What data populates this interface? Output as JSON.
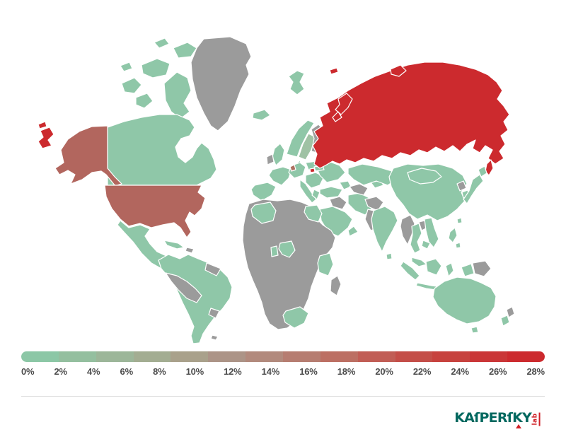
{
  "colors": {
    "ocean": "#ffffff",
    "accent_red": "#cc2a2e",
    "logo_green": "#00685f",
    "logo_red": "#cf2026",
    "tick_text": "#4d4d4d",
    "divider": "#dcdcdc"
  },
  "map_colors": {
    "green_low": "#8fc7a8",
    "green_mid": "#9fc2a4",
    "no_data_gray": "#9b9b9b",
    "red_high": "#cc2a2e",
    "brown_usa": "#b2665e",
    "brown_netherlands": "#ad7060"
  },
  "legend": {
    "ticks": [
      "0%",
      "2%",
      "4%",
      "6%",
      "8%",
      "10%",
      "12%",
      "14%",
      "16%",
      "18%",
      "20%",
      "22%",
      "24%",
      "26%",
      "28%"
    ],
    "colors": [
      "#8cc7a6",
      "#94bf9f",
      "#9cb699",
      "#a3ad92",
      "#a9a18b",
      "#ac9487",
      "#b28a7d",
      "#b67d71",
      "#bc6f63",
      "#c15d55",
      "#c44e48",
      "#c7423e",
      "#ca3637",
      "#cc2a2e"
    ]
  },
  "logo": {
    "brand": "KAſPERſKY",
    "lab": "lab"
  },
  "chart_data": {
    "type": "heatmap",
    "subtype": "world-choropleth",
    "title": "",
    "legend_ticks": [
      "0%",
      "2%",
      "4%",
      "6%",
      "8%",
      "10%",
      "12%",
      "14%",
      "16%",
      "18%",
      "20%",
      "22%",
      "24%",
      "26%",
      "28%"
    ],
    "scale": {
      "min_pct": 0,
      "max_pct": 28,
      "low_color": "#8cc7a6",
      "high_color": "#cc2a2e",
      "no_data_color": "#9b9b9b"
    },
    "regions": [
      {
        "name": "Russia (incl. Kaliningrad, Novaya Zemlya, arctic islands)",
        "color": "#cc2a2e",
        "approx_bin": "26-28%"
      },
      {
        "name": "United States (incl. Alaska)",
        "color": "#b2665e",
        "approx_bin": "14-16%"
      },
      {
        "name": "Netherlands",
        "color": "#ad7060",
        "approx_bin": "8-12%"
      },
      {
        "name": "Sweden",
        "color": "#9fc2a4",
        "approx_bin": "2-4%"
      },
      {
        "name": "Canada",
        "color": "#8fc7a8",
        "approx_bin": "0-2%"
      },
      {
        "name": "Mexico / Central America",
        "color": "#8fc7a8",
        "approx_bin": "0-2%"
      },
      {
        "name": "Cuba",
        "color": "#8fc7a8",
        "approx_bin": "0-2%"
      },
      {
        "name": "South America (Brazil, Argentina, Chile, Colombia, Venezuela, Ecuador)",
        "color": "#8fc7a8",
        "approx_bin": "0-2%"
      },
      {
        "name": "United Kingdom",
        "color": "#8fc7a8",
        "approx_bin": "0-2%"
      },
      {
        "name": "Iceland",
        "color": "#8fc7a8",
        "approx_bin": "0-2%"
      },
      {
        "name": "Norway",
        "color": "#8fc7a8",
        "approx_bin": "0-2%"
      },
      {
        "name": "France / Iberia / Germany / Italy / Poland / Balkans / Ukraine",
        "color": "#8fc7a8",
        "approx_bin": "0-2%"
      },
      {
        "name": "Turkey",
        "color": "#8fc7a8",
        "approx_bin": "0-2%"
      },
      {
        "name": "Kazakhstan",
        "color": "#8fc7a8",
        "approx_bin": "0-2%"
      },
      {
        "name": "Iran",
        "color": "#8fc7a8",
        "approx_bin": "0-2%"
      },
      {
        "name": "Saudi Arabia",
        "color": "#8fc7a8",
        "approx_bin": "0-2%"
      },
      {
        "name": "Algeria / Egypt / Nigeria / Ghana / Kenya / Tanzania / South Africa",
        "color": "#8fc7a8",
        "approx_bin": "0-2%"
      },
      {
        "name": "India / Sri Lanka",
        "color": "#8fc7a8",
        "approx_bin": "0-2%"
      },
      {
        "name": "China / Mongolia",
        "color": "#8fc7a8",
        "approx_bin": "0-2%"
      },
      {
        "name": "Japan / South Korea / Taiwan",
        "color": "#8fc7a8",
        "approx_bin": "0-2%"
      },
      {
        "name": "Thailand / Vietnam / Malaysia / Indonesia / Philippines",
        "color": "#8fc7a8",
        "approx_bin": "0-2%"
      },
      {
        "name": "Australia / Tasmania / New Zealand South Island",
        "color": "#8fc7a8",
        "approx_bin": "0-2%"
      },
      {
        "name": "Greenland",
        "color": "#9b9b9b",
        "approx_bin": "no data"
      },
      {
        "name": "Ireland / Finland / Estonia",
        "color": "#9b9b9b",
        "approx_bin": "no data"
      },
      {
        "name": "Peru / Bolivia / Paraguay / Uruguay / Guyanas / Hispaniola",
        "color": "#9b9b9b",
        "approx_bin": "no data"
      },
      {
        "name": "Most of Africa / Madagascar",
        "color": "#9b9b9b",
        "approx_bin": "no data"
      },
      {
        "name": "Syria / Iraq / Turkmenistan / Afghanistan / Pakistan",
        "color": "#9b9b9b",
        "approx_bin": "no data"
      },
      {
        "name": "Myanmar / Laos / North Korea / Papua New Guinea / New Zealand North Island",
        "color": "#9b9b9b",
        "approx_bin": "no data"
      }
    ]
  }
}
